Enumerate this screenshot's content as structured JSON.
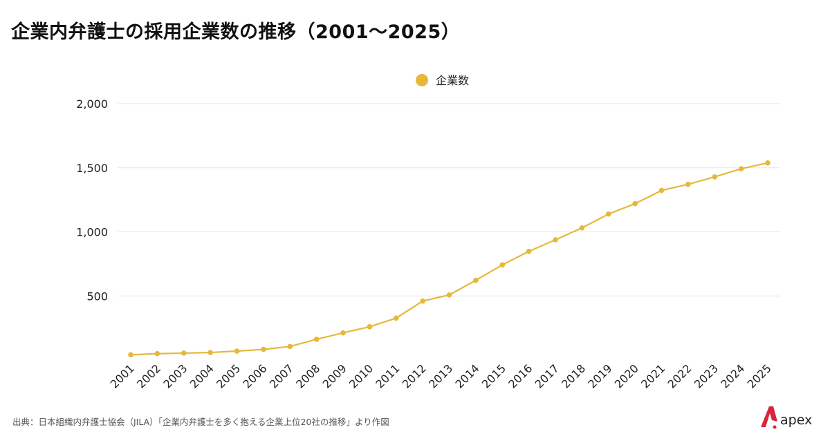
{
  "title": "企業内弁護士の採用企業数の推移（2001〜2025）",
  "source": "出典：日本組織内弁護士協会（JILA）「企業内弁護士を多く抱える企業上位20社の推移」より作図",
  "logo_text": "apex",
  "colors": {
    "series": "#E6B83A",
    "grid": "#E6E6E6",
    "logo": "#D9263A"
  },
  "chart_data": {
    "type": "line",
    "title": "企業内弁護士の採用企業数の推移（2001〜2025）",
    "xlabel": "",
    "ylabel": "",
    "ylim": [
      0,
      2000
    ],
    "yticks": [
      500,
      1000,
      1500,
      2000
    ],
    "ytick_labels": [
      "500",
      "1,000",
      "1,500",
      "2,000"
    ],
    "grid": true,
    "legend_position": "top-center",
    "categories": [
      "2001",
      "2002",
      "2003",
      "2004",
      "2005",
      "2006",
      "2007",
      "2008",
      "2009",
      "2010",
      "2011",
      "2012",
      "2013",
      "2014",
      "2015",
      "2016",
      "2017",
      "2018",
      "2019",
      "2020",
      "2021",
      "2022",
      "2023",
      "2024",
      "2025"
    ],
    "series": [
      {
        "name": "企業数",
        "values": [
          41,
          50,
          54,
          59,
          70,
          83,
          106,
          162,
          212,
          260,
          327,
          460,
          508,
          622,
          742,
          848,
          938,
          1031,
          1139,
          1220,
          1323,
          1371,
          1429,
          1492,
          1538
        ]
      }
    ]
  }
}
